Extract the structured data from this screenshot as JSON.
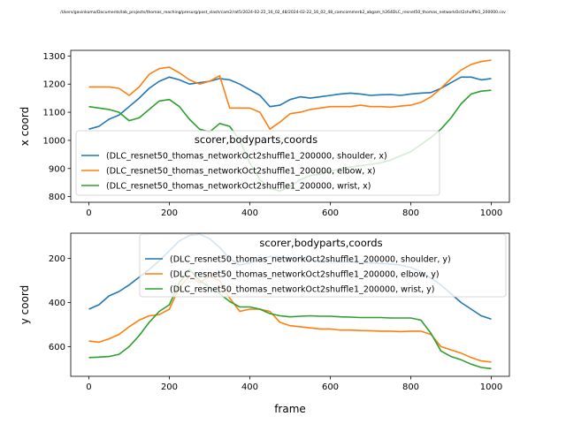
{
  "title": "/Users/gavinkoma/Documents/lab_projects/thomas_reaching/presurg/post_slash/cam2/rat5/2024-02-22_16_02_48/2024-02-22_16_02_48_camcommerb2_abgam_h264DLC_resnet50_thomas_networkOct2shuffle1_200000.csv",
  "colors": {
    "blue": "#1f77b4",
    "orange": "#ff7f0e",
    "green": "#2ca02c"
  },
  "chart_data": [
    {
      "type": "line",
      "xlabel": "",
      "ylabel": "x coord",
      "xlim": [
        -45,
        1045
      ],
      "ylim": [
        780,
        1320
      ],
      "xticks": [
        0,
        200,
        400,
        600,
        800,
        1000
      ],
      "yticks": [
        800,
        900,
        1000,
        1100,
        1200,
        1300
      ],
      "legend": {
        "title": "scorer,bodyparts,coords",
        "placement": "center-left"
      },
      "x": [
        0,
        25,
        50,
        75,
        100,
        125,
        150,
        175,
        200,
        225,
        250,
        275,
        300,
        325,
        350,
        375,
        400,
        425,
        450,
        475,
        500,
        525,
        550,
        575,
        600,
        625,
        650,
        675,
        700,
        725,
        750,
        775,
        800,
        825,
        850,
        875,
        900,
        925,
        950,
        975,
        1000
      ],
      "series": [
        {
          "name": "(DLC_resnet50_thomas_networkOct2shuffle1_200000, shoulder, x)",
          "color": "blue",
          "values": [
            1040,
            1050,
            1075,
            1090,
            1120,
            1150,
            1185,
            1210,
            1225,
            1215,
            1200,
            1205,
            1210,
            1220,
            1215,
            1200,
            1180,
            1160,
            1120,
            1125,
            1145,
            1155,
            1150,
            1155,
            1160,
            1165,
            1168,
            1165,
            1160,
            1162,
            1163,
            1160,
            1165,
            1168,
            1170,
            1185,
            1205,
            1225,
            1225,
            1215,
            1220
          ]
        },
        {
          "name": "(DLC_resnet50_thomas_networkOct2shuffle1_200000, elbow, x)",
          "color": "orange",
          "values": [
            1190,
            1190,
            1190,
            1185,
            1160,
            1190,
            1235,
            1255,
            1260,
            1240,
            1215,
            1200,
            1210,
            1230,
            1115,
            1115,
            1115,
            1100,
            1040,
            1065,
            1095,
            1100,
            1110,
            1115,
            1120,
            1120,
            1120,
            1125,
            1120,
            1120,
            1118,
            1122,
            1125,
            1135,
            1155,
            1185,
            1220,
            1250,
            1270,
            1280,
            1285
          ]
        },
        {
          "name": "(DLC_resnet50_thomas_networkOct2shuffle1_200000, wrist, x)",
          "color": "green",
          "values": [
            1120,
            1115,
            1110,
            1100,
            1070,
            1080,
            1110,
            1140,
            1145,
            1120,
            1075,
            1040,
            1030,
            1060,
            1050,
            1000,
            920,
            860,
            830,
            820,
            835,
            860,
            875,
            880,
            890,
            900,
            905,
            910,
            915,
            920,
            930,
            945,
            960,
            985,
            1010,
            1040,
            1080,
            1130,
            1165,
            1175,
            1178
          ]
        }
      ]
    },
    {
      "type": "line",
      "xlabel": "frame",
      "ylabel": "y coord",
      "xlim": [
        -45,
        1045
      ],
      "ylim": [
        735,
        85
      ],
      "inverted_y": true,
      "xticks": [
        0,
        200,
        400,
        600,
        800,
        1000
      ],
      "yticks": [
        200,
        400,
        600
      ],
      "legend": {
        "title": "scorer,bodyparts,coords",
        "placement": "upper-right"
      },
      "x": [
        0,
        25,
        50,
        75,
        100,
        125,
        150,
        175,
        200,
        225,
        250,
        275,
        300,
        325,
        350,
        375,
        400,
        425,
        450,
        475,
        500,
        525,
        550,
        575,
        600,
        625,
        650,
        675,
        700,
        725,
        750,
        775,
        800,
        825,
        850,
        875,
        900,
        925,
        950,
        975,
        1000
      ],
      "series": [
        {
          "name": "(DLC_resnet50_thomas_networkOct2shuffle1_200000, shoulder, y)",
          "color": "blue",
          "values": [
            430,
            410,
            370,
            350,
            320,
            285,
            250,
            210,
            165,
            120,
            95,
            90,
            110,
            150,
            200,
            230,
            220,
            205,
            190,
            195,
            200,
            200,
            205,
            210,
            210,
            215,
            215,
            220,
            220,
            222,
            225,
            230,
            240,
            260,
            290,
            320,
            360,
            400,
            430,
            460,
            475
          ]
        },
        {
          "name": "(DLC_resnet50_thomas_networkOct2shuffle1_200000, elbow, y)",
          "color": "orange",
          "values": [
            575,
            580,
            565,
            545,
            510,
            480,
            460,
            455,
            430,
            330,
            280,
            310,
            280,
            300,
            380,
            440,
            430,
            430,
            440,
            490,
            505,
            510,
            515,
            520,
            520,
            525,
            525,
            527,
            528,
            530,
            530,
            532,
            530,
            530,
            545,
            600,
            615,
            630,
            650,
            665,
            670
          ]
        },
        {
          "name": "(DLC_resnet50_thomas_networkOct2shuffle1_200000, wrist, y)",
          "color": "green",
          "values": [
            650,
            648,
            645,
            635,
            600,
            550,
            490,
            440,
            410,
            310,
            250,
            300,
            330,
            360,
            395,
            420,
            420,
            430,
            450,
            460,
            465,
            462,
            460,
            462,
            462,
            465,
            466,
            468,
            468,
            468,
            470,
            470,
            470,
            480,
            540,
            620,
            645,
            660,
            680,
            695,
            700
          ]
        }
      ]
    }
  ]
}
